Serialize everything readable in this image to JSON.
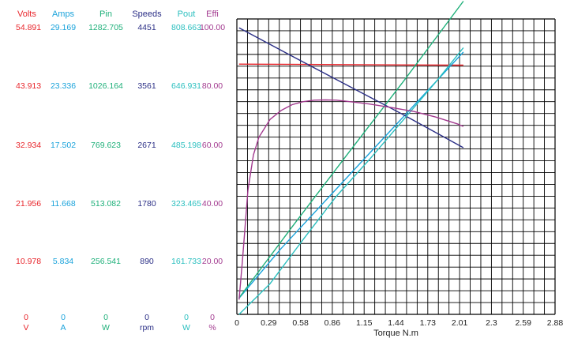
{
  "chart_data": {
    "type": "line",
    "title": "",
    "xlabel": "Torque N.m",
    "xlim": [
      0,
      2.88
    ],
    "x_ticks": [
      "0",
      "0.29",
      "0.58",
      "0.86",
      "1.15",
      "1.44",
      "1.73",
      "2.01",
      "2.3",
      "2.59",
      "2.88"
    ],
    "grid": true,
    "grid_rows": 25,
    "grid_cols": 30,
    "axes": [
      {
        "name": "Volts",
        "unit": "V",
        "color": "#e8262c",
        "ticks": [
          "0",
          "10.978",
          "21.956",
          "32.934",
          "43.913",
          "54.891"
        ]
      },
      {
        "name": "Amps",
        "unit": "A",
        "color": "#1aa3db",
        "ticks": [
          "0",
          "5.834",
          "11.668",
          "17.502",
          "23.336",
          "29.169"
        ]
      },
      {
        "name": "Pin",
        "unit": "W",
        "color": "#1fb07a",
        "ticks": [
          "0",
          "256.541",
          "513.082",
          "769.623",
          "1026.164",
          "1282.705"
        ]
      },
      {
        "name": "Speeds",
        "unit": "rpm",
        "color": "#2b2f86",
        "ticks": [
          "0",
          "890",
          "1780",
          "2671",
          "3561",
          "4451"
        ]
      },
      {
        "name": "Pout",
        "unit": "W",
        "color": "#2bbfbf",
        "ticks": [
          "0",
          "161.733",
          "323.465",
          "485.198",
          "646.931",
          "808.663"
        ]
      },
      {
        "name": "Effi",
        "unit": "%",
        "color": "#a23a8f",
        "ticks": [
          "0",
          "20.00",
          "40.00",
          "60.00",
          "80.00",
          "100.00"
        ]
      }
    ],
    "series": [
      {
        "name": "Volts",
        "color": "#e8262c",
        "x": [
          0.02,
          2.05
        ],
        "y": [
          46.5,
          46.3
        ]
      },
      {
        "name": "Amps",
        "color": "#1aa3db",
        "x": [
          0.02,
          0.4,
          0.8,
          1.2,
          1.6,
          2.05
        ],
        "y": [
          1.6,
          6.5,
          11.2,
          15.9,
          20.6,
          25.9
        ]
      },
      {
        "name": "Pin",
        "color": "#1fb07a",
        "x": [
          0.02,
          0.5,
          1.0,
          1.5,
          2.05
        ],
        "y": [
          72,
          380,
          695,
          1007,
          1360
        ]
      },
      {
        "name": "Speeds",
        "color": "#2b2f86",
        "x": [
          0.02,
          0.5,
          1.0,
          1.5,
          2.05
        ],
        "y": [
          4317,
          3890,
          3451,
          3014,
          2510
        ]
      },
      {
        "name": "Pout",
        "color": "#2bbfbf",
        "x": [
          0.02,
          0.3,
          0.6,
          0.9,
          1.2,
          1.5,
          1.8,
          2.05
        ],
        "y": [
          0,
          84,
          205,
          323,
          424,
          530,
          636,
          730
        ]
      },
      {
        "name": "Effi",
        "color": "#a23a8f",
        "x": [
          0.02,
          0.05,
          0.1,
          0.15,
          0.2,
          0.3,
          0.4,
          0.5,
          0.6,
          0.7,
          0.8,
          0.9,
          1.0,
          1.2,
          1.4,
          1.6,
          1.8,
          2.0,
          2.05
        ],
        "y": [
          5,
          18,
          42,
          54,
          60,
          66,
          69,
          71,
          72,
          72.5,
          72.6,
          72.5,
          72.1,
          71.2,
          70,
          68.7,
          66.8,
          64.4,
          63.6
        ]
      }
    ]
  }
}
